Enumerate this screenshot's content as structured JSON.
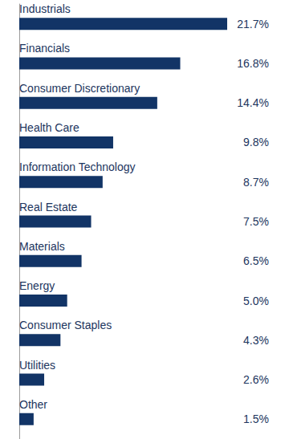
{
  "chart_data": {
    "type": "bar",
    "orientation": "horizontal",
    "categories": [
      "Industrials",
      "Financials",
      "Consumer Discretionary",
      "Health Care",
      "Information Technology",
      "Real Estate",
      "Materials",
      "Energy",
      "Consumer Staples",
      "Utilities",
      "Other"
    ],
    "values": [
      21.7,
      16.8,
      14.4,
      9.8,
      8.7,
      7.5,
      6.5,
      5.0,
      4.3,
      2.6,
      1.5
    ],
    "value_labels": [
      "21.7%",
      "16.8%",
      "14.4%",
      "9.8%",
      "8.7%",
      "7.5%",
      "6.5%",
      "5.0%",
      "4.3%",
      "2.6%",
      "1.5%"
    ],
    "color": "#123466",
    "xlim": [
      0,
      21.7
    ],
    "data_labels": true,
    "tick_labels": false,
    "grid": false
  }
}
